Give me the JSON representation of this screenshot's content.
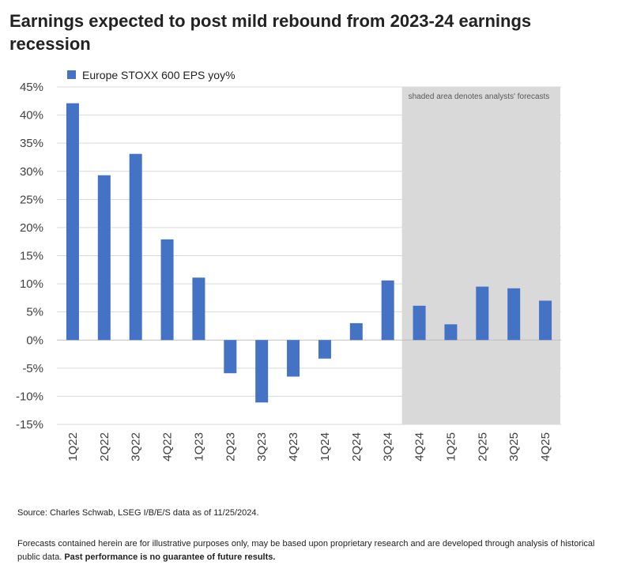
{
  "title": "Earnings expected to post mild rebound from 2023-24 earnings recession",
  "chart_data": {
    "type": "bar",
    "legend": "Europe STOXX 600 EPS yoy%",
    "legend_position": "top-left",
    "categories": [
      "1Q22",
      "2Q22",
      "3Q22",
      "4Q22",
      "1Q23",
      "2Q23",
      "3Q23",
      "4Q23",
      "1Q24",
      "2Q24",
      "3Q24",
      "4Q24",
      "1Q25",
      "2Q25",
      "3Q25",
      "4Q25"
    ],
    "values": [
      42.1,
      29.3,
      33.1,
      17.9,
      11.1,
      -5.9,
      -11.1,
      -6.5,
      -3.3,
      3.0,
      10.6,
      6.1,
      2.8,
      9.5,
      9.2,
      7.0
    ],
    "forecast_start_index": 11,
    "ylim": [
      -15,
      45
    ],
    "yticks": [
      -15,
      -10,
      -5,
      0,
      5,
      10,
      15,
      20,
      25,
      30,
      35,
      40,
      45
    ],
    "ytick_labels": [
      "-15%",
      "-10%",
      "-5%",
      "0%",
      "5%",
      "10%",
      "15%",
      "20%",
      "25%",
      "30%",
      "35%",
      "40%",
      "45%"
    ],
    "annotation": "shaded area denotes analysts' forecasts",
    "grid": true,
    "colors": {
      "bar": "#4472c4",
      "forecast_shade": "#d9d9d9",
      "grid": "#d9d9d9"
    }
  },
  "source": "Source: Charles Schwab, LSEG I/B/E/S data as of 11/25/2024.",
  "disclaimer": "Forecasts contained herein are for illustrative purposes only, may be based upon proprietary research and are developed through analysis of historical public data.",
  "disclaimer_bold": "Past performance is no guarantee of future results."
}
